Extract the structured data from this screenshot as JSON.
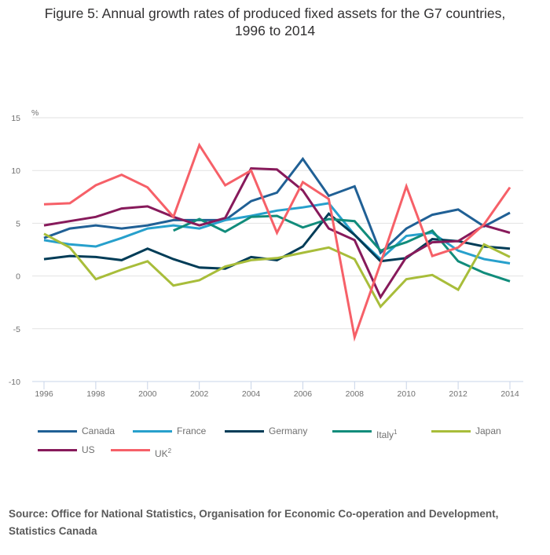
{
  "chart_data": {
    "type": "line",
    "title": "Figure 5: Annual growth rates of produced fixed assets for the G7 countries, 1996 to 2014",
    "title_lines": [
      "Figure 5: Annual growth rates of produced fixed assets for the G7 countries,",
      "1996 to 2014"
    ],
    "xlabel": "",
    "ylabel": "%",
    "ylim": [
      -10,
      15
    ],
    "yticks": [
      15,
      10,
      5,
      0,
      -5,
      -10
    ],
    "x": [
      1996,
      1997,
      1998,
      1999,
      2000,
      2001,
      2002,
      2003,
      2004,
      2005,
      2006,
      2007,
      2008,
      2009,
      2010,
      2011,
      2012,
      2013,
      2014
    ],
    "xticks": [
      "1996",
      "1998",
      "2000",
      "2002",
      "2004",
      "2006",
      "2008",
      "2010",
      "2012",
      "2014"
    ],
    "grid": true,
    "legend_position": "bottom",
    "series": [
      {
        "name": "Canada",
        "sup": "",
        "color": "#206095",
        "values": [
          3.6,
          4.5,
          4.8,
          4.5,
          4.8,
          5.3,
          5.3,
          5.3,
          7.1,
          7.9,
          11.1,
          7.6,
          8.5,
          2.2,
          4.5,
          5.8,
          6.3,
          4.7,
          6.0
        ]
      },
      {
        "name": "France",
        "sup": "",
        "color": "#27a0cc",
        "values": [
          3.4,
          3.0,
          2.8,
          3.6,
          4.5,
          4.8,
          4.5,
          5.3,
          5.7,
          6.2,
          6.5,
          6.9,
          3.9,
          1.6,
          3.8,
          4.1,
          2.4,
          1.6,
          1.2
        ]
      },
      {
        "name": "Germany",
        "sup": "",
        "color": "#003c57",
        "values": [
          1.6,
          1.9,
          1.8,
          1.5,
          2.6,
          1.6,
          0.8,
          0.7,
          1.8,
          1.5,
          2.8,
          5.9,
          3.9,
          1.4,
          1.7,
          3.5,
          3.3,
          2.8,
          2.6
        ]
      },
      {
        "name": "Italy",
        "sup": "1",
        "color": "#118c7b",
        "values": [
          null,
          null,
          null,
          null,
          null,
          4.3,
          5.4,
          4.2,
          5.6,
          5.7,
          4.6,
          5.4,
          5.2,
          2.4,
          3.2,
          4.3,
          1.4,
          0.3,
          -0.5
        ]
      },
      {
        "name": "Japan",
        "sup": "",
        "color": "#a8bd3a",
        "values": [
          4.0,
          2.7,
          -0.3,
          0.6,
          1.4,
          -0.9,
          -0.4,
          0.9,
          1.5,
          1.7,
          2.2,
          2.7,
          1.6,
          -2.9,
          -0.3,
          0.1,
          -1.3,
          3.0,
          1.8
        ]
      },
      {
        "name": "US",
        "sup": "",
        "color": "#871a5b",
        "values": [
          4.8,
          5.2,
          5.6,
          6.4,
          6.6,
          5.6,
          4.8,
          5.5,
          10.2,
          10.1,
          8.1,
          4.5,
          3.4,
          -2.0,
          1.8,
          3.2,
          3.3,
          4.8,
          4.1
        ]
      },
      {
        "name": "UK",
        "sup": "2",
        "color": "#f66068",
        "values": [
          6.8,
          6.9,
          8.6,
          9.6,
          8.4,
          5.6,
          12.4,
          8.6,
          10.0,
          4.1,
          8.9,
          7.3,
          -5.8,
          1.2,
          8.5,
          1.9,
          2.7,
          4.9,
          8.4
        ]
      }
    ]
  },
  "source": "Source: Office for National Statistics, Organisation for Economic Co-operation and Development, Statistics Canada"
}
